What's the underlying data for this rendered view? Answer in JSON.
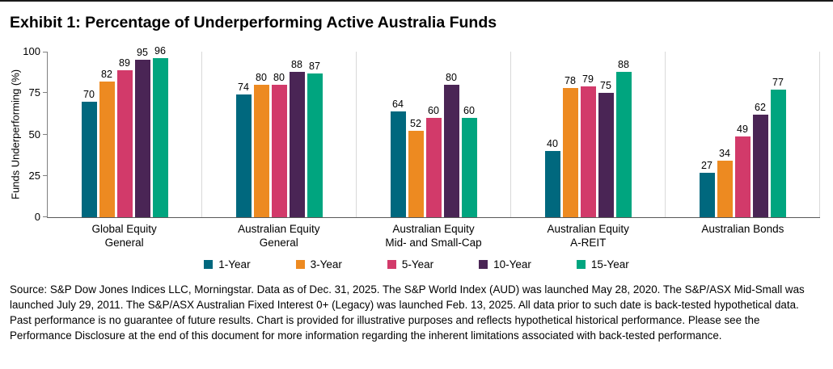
{
  "title": "Exhibit 1: Percentage of Underperforming Active Australia Funds",
  "chart_data": {
    "type": "bar",
    "title": "Exhibit 1: Percentage of Underperforming Active Australia Funds",
    "ylabel": "Funds Underperforming (%)",
    "xlabel": "",
    "ylim": [
      0,
      100
    ],
    "yticks": [
      0,
      25,
      50,
      75,
      100
    ],
    "grid": "vertical category separators only",
    "legend_position": "bottom",
    "categories": [
      "Global Equity\nGeneral",
      "Australian Equity\nGeneral",
      "Australian Equity\nMid- and Small-Cap",
      "Australian Equity\nA-REIT",
      "Australian Bonds"
    ],
    "series": [
      {
        "name": "1-Year",
        "color": "#00687E",
        "values": [
          70,
          74,
          64,
          40,
          27
        ]
      },
      {
        "name": "3-Year",
        "color": "#ED8A21",
        "values": [
          82,
          80,
          52,
          78,
          34
        ]
      },
      {
        "name": "5-Year",
        "color": "#D23A6A",
        "values": [
          89,
          80,
          60,
          79,
          49
        ]
      },
      {
        "name": "10-Year",
        "color": "#4A2555",
        "values": [
          95,
          88,
          80,
          75,
          62
        ]
      },
      {
        "name": "15-Year",
        "color": "#00A57F",
        "values": [
          96,
          87,
          60,
          88,
          77
        ]
      }
    ]
  },
  "source_text": "Source: S&P Dow Jones Indices LLC, Morningstar.  Data as of Dec. 31, 2025.  The S&P World Index (AUD) was launched May 28, 2020.  The S&P/ASX Mid-Small was launched July 29, 2011.  The S&P/ASX Australian Fixed Interest 0+ (Legacy) was launched Feb. 13, 2025.  All data prior to such date is back-tested hypothetical data.  Past performance is no guarantee of future results.  Chart is provided for illustrative purposes and reflects hypothetical historical performance.  Please see the Performance Disclosure at the end of this document for more information regarding the inherent limitations associated with back-tested performance."
}
